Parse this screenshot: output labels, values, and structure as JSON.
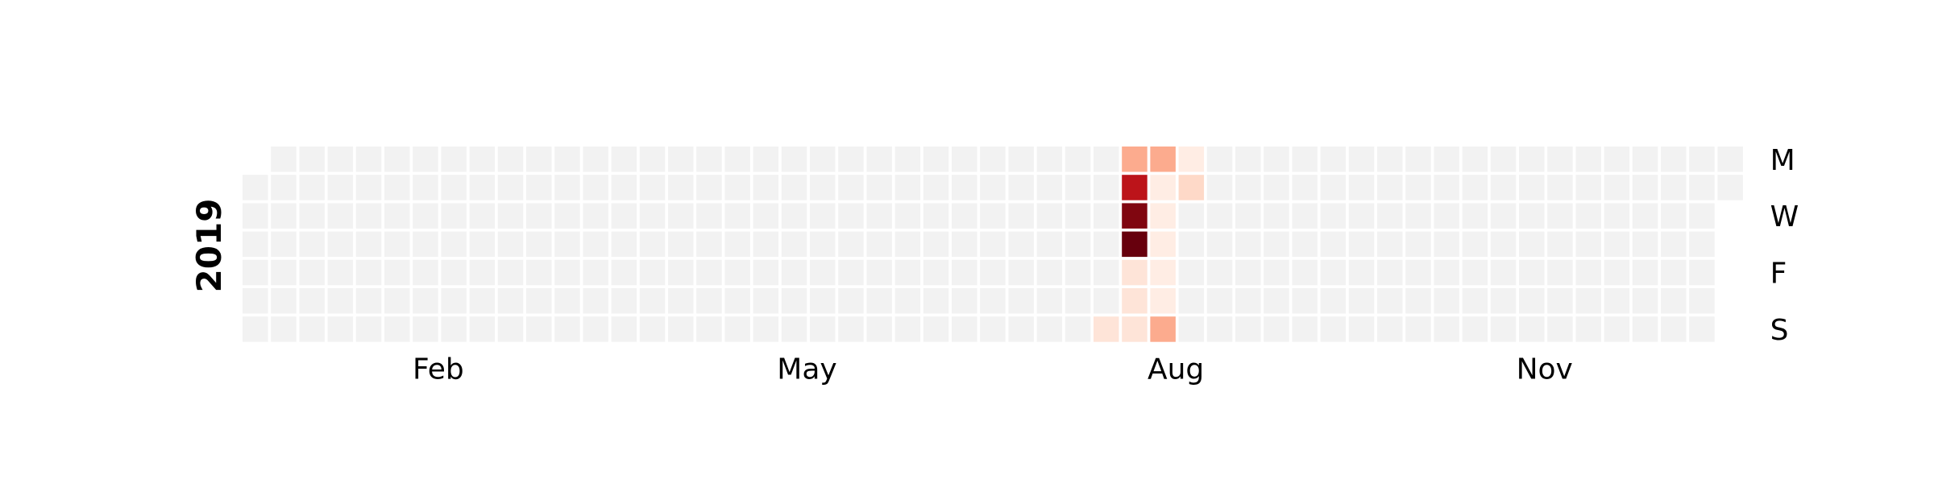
{
  "chart_data": {
    "type": "heatmap",
    "year": "2019",
    "row_labels": [
      "M",
      "",
      "W",
      "",
      "F",
      "",
      "S"
    ],
    "month_labels": [
      {
        "label": "Feb",
        "week": 6.9
      },
      {
        "label": "May",
        "week": 19.9
      },
      {
        "label": "Aug",
        "week": 32.9
      },
      {
        "label": "Nov",
        "week": 45.9
      }
    ],
    "first_weekday": 1,
    "weeks": 53,
    "days_in_year": 365,
    "empty_color": "#f2f2f2",
    "grid": false,
    "legend": false,
    "nonzero_values": [
      {
        "date": "2019-08-04",
        "value": 0.1
      },
      {
        "date": "2019-08-05",
        "value": 0.3
      },
      {
        "date": "2019-08-06",
        "value": 0.8
      },
      {
        "date": "2019-08-07",
        "value": 0.95
      },
      {
        "date": "2019-08-08",
        "value": 1.0
      },
      {
        "date": "2019-08-09",
        "value": 0.1
      },
      {
        "date": "2019-08-10",
        "value": 0.1
      },
      {
        "date": "2019-08-11",
        "value": 0.1
      },
      {
        "date": "2019-08-12",
        "value": 0.3
      },
      {
        "date": "2019-08-13",
        "value": 0.05
      },
      {
        "date": "2019-08-14",
        "value": 0.05
      },
      {
        "date": "2019-08-15",
        "value": 0.05
      },
      {
        "date": "2019-08-16",
        "value": 0.05
      },
      {
        "date": "2019-08-17",
        "value": 0.05
      },
      {
        "date": "2019-08-18",
        "value": 0.3
      },
      {
        "date": "2019-08-19",
        "value": 0.05
      },
      {
        "date": "2019-08-20",
        "value": 0.15
      }
    ]
  }
}
